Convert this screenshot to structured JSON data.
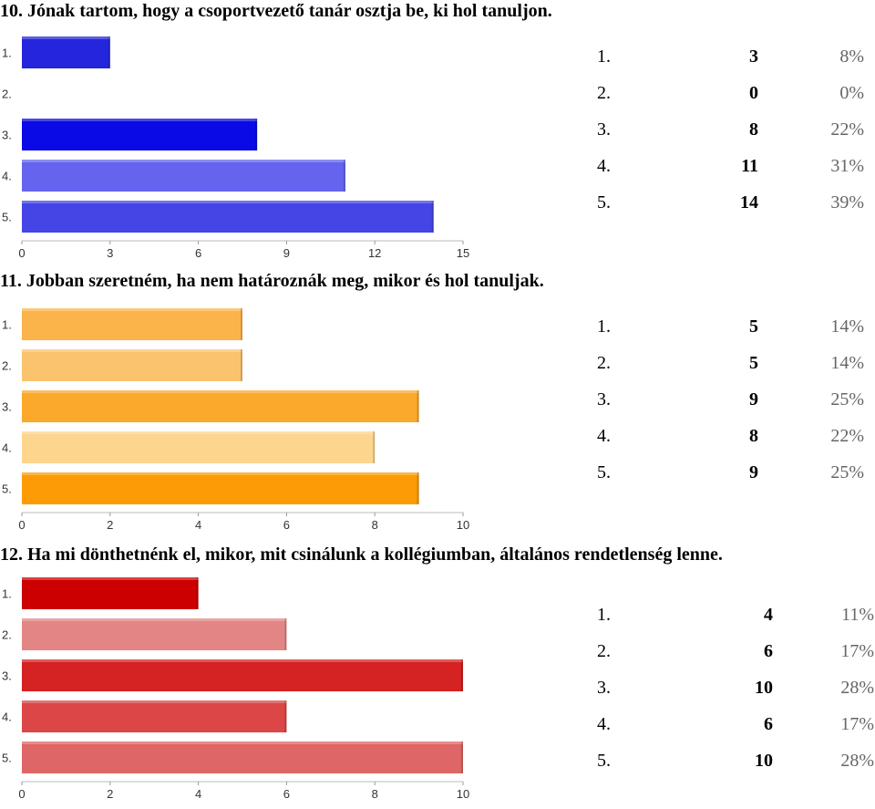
{
  "chart_data": [
    {
      "type": "bar",
      "title": "10. Jónak tartom, hogy a csoportvezető tanár osztja be, ki hol tanuljon.",
      "categories": [
        "1.",
        "2.",
        "3.",
        "4.",
        "5."
      ],
      "values": [
        3,
        0,
        8,
        11,
        14
      ],
      "percents": [
        "8%",
        "0%",
        "22%",
        "31%",
        "39%"
      ],
      "xlim": [
        0,
        15
      ],
      "ticks": [
        0,
        3,
        6,
        9,
        12,
        15
      ],
      "colors": [
        "#2525dd",
        "#2525dd",
        "#0a0ae6",
        "#6464ee",
        "#4545e6"
      ]
    },
    {
      "type": "bar",
      "title": "11. Jobban szeretném, ha nem határoznák meg, mikor és hol tanuljak.",
      "categories": [
        "1.",
        "2.",
        "3.",
        "4.",
        "5."
      ],
      "values": [
        5,
        5,
        9,
        8,
        9
      ],
      "percents": [
        "14%",
        "14%",
        "25%",
        "22%",
        "25%"
      ],
      "xlim": [
        0,
        10
      ],
      "ticks": [
        0,
        2,
        4,
        6,
        8,
        10
      ],
      "colors": [
        "#fbb44a",
        "#fbc36e",
        "#fba92a",
        "#fdd58e",
        "#fd9b07"
      ]
    },
    {
      "type": "bar",
      "title": "12. Ha mi dönthetnénk el, mikor, mit csinálunk a kollégiumban, általános rendetlenség lenne.",
      "categories": [
        "1.",
        "2.",
        "3.",
        "4.",
        "5."
      ],
      "values": [
        4,
        6,
        10,
        6,
        10
      ],
      "percents": [
        "11%",
        "17%",
        "28%",
        "17%",
        "28%"
      ],
      "xlim": [
        0,
        10
      ],
      "ticks": [
        0,
        2,
        4,
        6,
        8,
        10
      ],
      "colors": [
        "#cc0000",
        "#e48585",
        "#d52222",
        "#dd4646",
        "#df6666"
      ]
    }
  ]
}
